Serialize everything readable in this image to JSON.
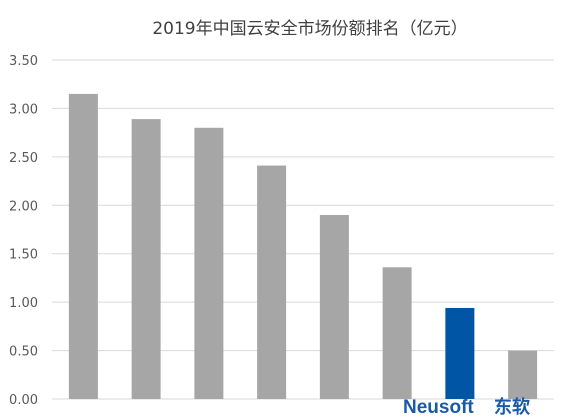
{
  "chart_data": {
    "type": "bar",
    "title": "2019年中国云安全市场份额排名（亿元）",
    "categories": [
      "",
      "",
      "",
      "",
      "",
      "",
      "",
      ""
    ],
    "values": [
      3.15,
      2.89,
      2.8,
      2.41,
      1.9,
      1.36,
      0.94,
      0.5
    ],
    "colors": [
      "#a6a6a6",
      "#a6a6a6",
      "#a6a6a6",
      "#a6a6a6",
      "#a6a6a6",
      "#a6a6a6",
      "#0055a4",
      "#a6a6a6"
    ],
    "highlight_color": "#0055a4",
    "bar_color": "#a6a6a6",
    "ylim": [
      0,
      3.5
    ],
    "yticks": [
      "0.00",
      "0.50",
      "1.00",
      "1.50",
      "2.00",
      "2.50",
      "3.00",
      "3.50"
    ],
    "grid": true,
    "legend": "none"
  },
  "logo": {
    "text_en": "Neusoft",
    "text_cn": "东软"
  }
}
